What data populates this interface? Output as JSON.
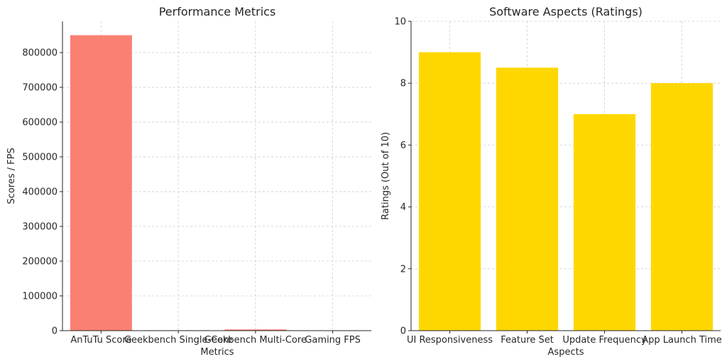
{
  "chart_data": [
    {
      "type": "bar",
      "title": "Performance Metrics",
      "xlabel": "Metrics",
      "ylabel": "Scores / FPS",
      "categories": [
        "AnTuTu Score",
        "Geekbench Single-Core",
        "Geekbench Multi-Core",
        "Gaming FPS"
      ],
      "values": [
        850000,
        1200,
        3500,
        60
      ],
      "ylim": [
        0,
        890000
      ],
      "yticks": [
        0,
        100000,
        200000,
        300000,
        400000,
        500000,
        600000,
        700000,
        800000
      ],
      "color": "#fa8072",
      "grid": true
    },
    {
      "type": "bar",
      "title": "Software Aspects (Ratings)",
      "xlabel": "Aspects",
      "ylabel": "Ratings (Out of 10)",
      "categories": [
        "UI Responsiveness",
        "Feature Set",
        "Update Frequency",
        "App Launch Time"
      ],
      "values": [
        9,
        8.5,
        7,
        8
      ],
      "ylim": [
        0,
        10
      ],
      "yticks": [
        0,
        2,
        4,
        6,
        8,
        10
      ],
      "color": "#ffd700",
      "grid": true
    }
  ]
}
